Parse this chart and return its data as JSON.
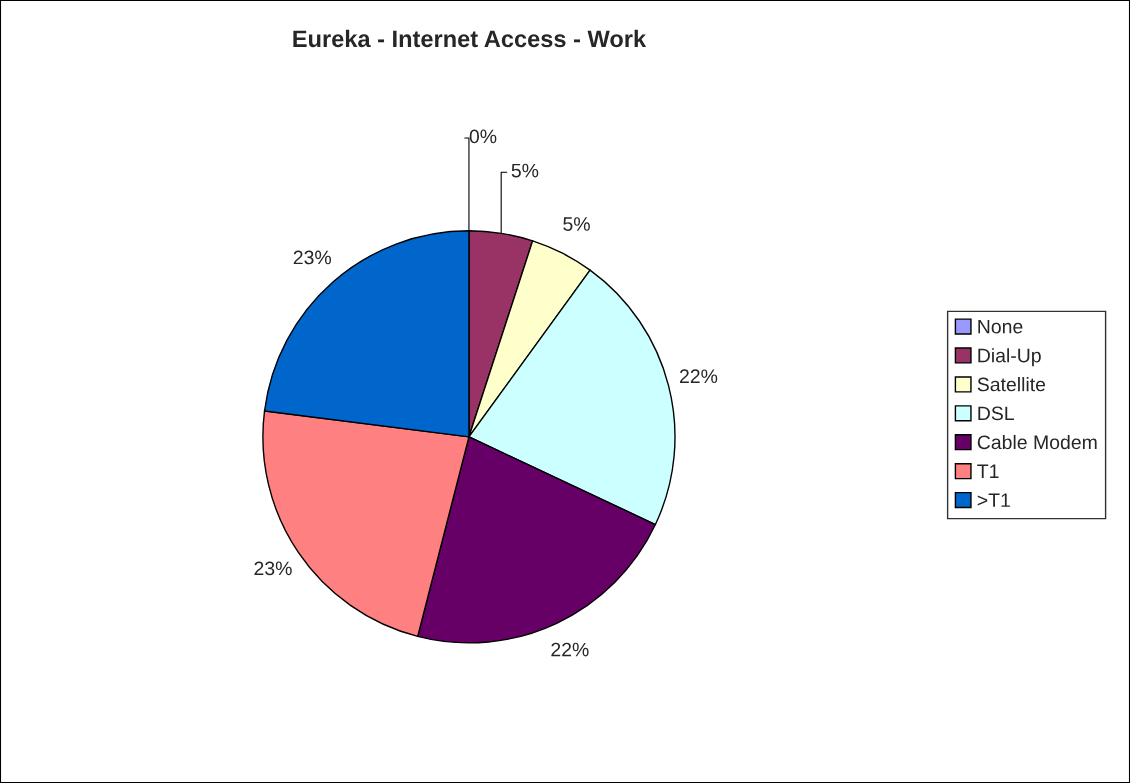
{
  "chart_data": {
    "type": "pie",
    "title": "Eureka - Internet Access - Work",
    "categories": [
      "None",
      "Dial-Up",
      "Satellite",
      "DSL",
      "Cable Modem",
      "T1",
      ">T1"
    ],
    "values": [
      0,
      5,
      5,
      22,
      22,
      23,
      23
    ],
    "colors": [
      "#9999ff",
      "#993366",
      "#ffffcc",
      "#ccffff",
      "#660066",
      "#ff8080",
      "#0066cc"
    ],
    "value_labels": [
      "0%",
      "5%",
      "5%",
      "22%",
      "22%",
      "23%",
      "23%"
    ],
    "legend": "right"
  }
}
